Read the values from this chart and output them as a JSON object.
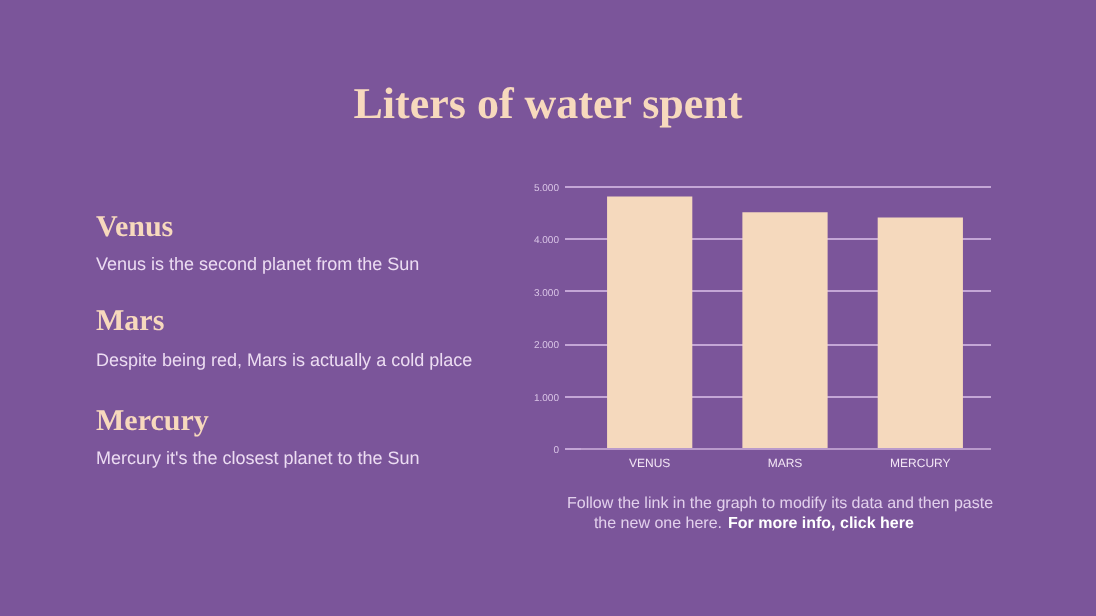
{
  "chart_data": {
    "type": "bar",
    "title": "Liters of water spent",
    "categories": [
      "VENUS",
      "MARS",
      "MERCURY"
    ],
    "values": [
      4800,
      4500,
      4400
    ],
    "color": "#f5d9bd",
    "ylim": [
      0,
      5000
    ],
    "yticks": [
      0,
      {
        "value": 1000,
        "label": "1.000"
      },
      {
        "value": 2000,
        "label": "2.000"
      },
      {
        "value": 3000,
        "label": "3.000"
      },
      {
        "value": 4000,
        "label": "4.000"
      },
      {
        "value": 5000,
        "label": "5.000"
      }
    ],
    "grid": "y",
    "annotations": [
      "Venus",
      "Venus is the second planet from the Sun",
      "Mars",
      "Despite being red, Mars is actually a cold place",
      "Mercury",
      "Mercury it's the closest planet to the Sun",
      "Follow the link in the graph to modify its data and then paste",
      "the new one here.",
      "For more info, click here"
    ]
  }
}
